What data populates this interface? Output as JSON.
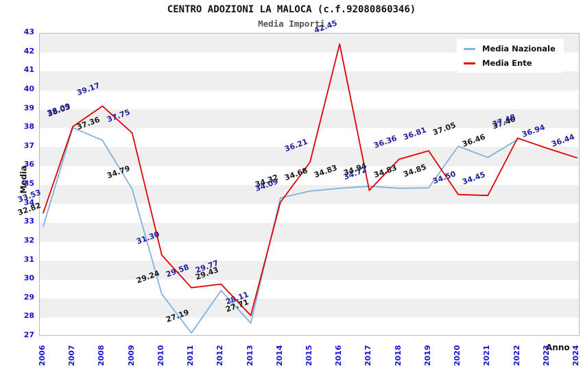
{
  "chart_data": {
    "type": "line",
    "title": "CENTRO ADOZIONI LA MALOCA (c.f.92080860346)",
    "subtitle": "Media Importi",
    "xlabel": "Anno",
    "ylabel": "Media",
    "ylim": [
      27,
      43
    ],
    "y_ticks": [
      27,
      28,
      29,
      30,
      31,
      32,
      33,
      34,
      35,
      36,
      37,
      38,
      39,
      40,
      41,
      42,
      43
    ],
    "categories": [
      "2006",
      "2007",
      "2008",
      "2009",
      "2010",
      "2011",
      "2012",
      "2013",
      "2014",
      "2015",
      "2016",
      "2017",
      "2018",
      "2019",
      "2020",
      "2021",
      "2022",
      "2023",
      "2024"
    ],
    "series": [
      {
        "name": "Media Nazionale",
        "color": "#7EB2E4",
        "label_color": "#1a1a1a",
        "values": [
          32.82,
          38.03,
          37.36,
          34.79,
          29.24,
          27.19,
          29.43,
          27.71,
          34.32,
          34.68,
          34.83,
          34.94,
          34.83,
          34.85,
          37.05,
          36.46,
          37.4,
          null,
          null
        ]
      },
      {
        "name": "Media Ente",
        "color": "#DD0000",
        "label_color": "#22229a",
        "values": [
          33.53,
          38.09,
          39.17,
          37.75,
          31.3,
          29.58,
          29.77,
          28.11,
          34.09,
          36.21,
          42.45,
          34.72,
          36.36,
          36.81,
          34.5,
          34.45,
          37.48,
          36.94,
          36.44
        ]
      }
    ],
    "legend_position": "top-right",
    "grid": "striped-horizontal",
    "colors": {
      "tick_label": "#1414CC",
      "stripe": "#EFEFEF",
      "plot_border": "#B9B9CB",
      "subtitle": "#555555"
    }
  }
}
